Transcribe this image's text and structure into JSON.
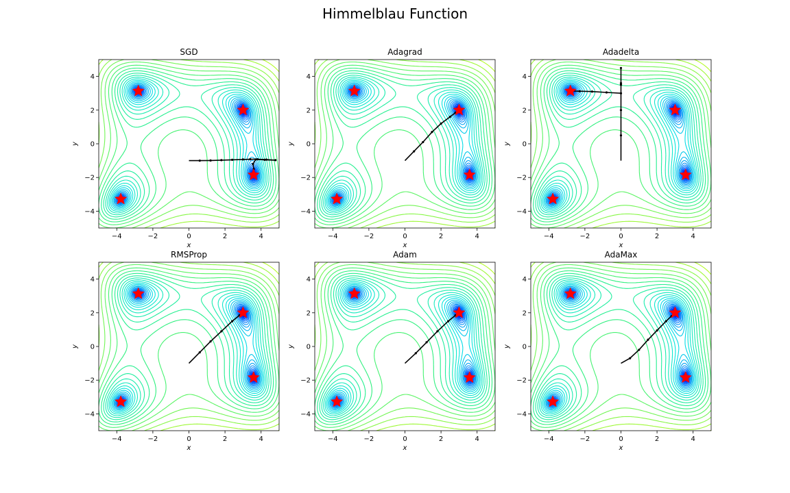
{
  "figure": {
    "title": "Himmelblau Function"
  },
  "chart_data": [
    {
      "type": "contour",
      "title": "SGD",
      "xlabel": "x",
      "ylabel": "y",
      "xlim": [
        -5,
        5
      ],
      "ylim": [
        -5,
        5
      ],
      "xticks": [
        -4,
        -2,
        0,
        2,
        4
      ],
      "yticks": [
        -4,
        -2,
        0,
        2,
        4
      ],
      "minima": [
        [
          3.0,
          2.0
        ],
        [
          -2.805,
          3.131
        ],
        [
          -3.779,
          -3.283
        ],
        [
          3.584,
          -1.848
        ]
      ],
      "path": [
        [
          0,
          -1
        ],
        [
          0.6,
          -1
        ],
        [
          1.2,
          -0.99
        ],
        [
          1.8,
          -0.97
        ],
        [
          2.4,
          -0.95
        ],
        [
          3.0,
          -0.93
        ],
        [
          3.4,
          -0.92
        ],
        [
          3.8,
          -0.92
        ],
        [
          4.3,
          -0.94
        ],
        [
          4.8,
          -0.97
        ],
        [
          4.2,
          -0.95
        ],
        [
          3.7,
          -0.93
        ],
        [
          3.55,
          -1.2
        ],
        [
          3.6,
          -1.5
        ],
        [
          3.58,
          -1.8
        ]
      ]
    },
    {
      "type": "contour",
      "title": "Adagrad",
      "xlabel": "x",
      "ylabel": "y",
      "xlim": [
        -5,
        5
      ],
      "ylim": [
        -5,
        5
      ],
      "xticks": [
        -4,
        -2,
        0,
        2,
        4
      ],
      "yticks": [
        -4,
        -2,
        0,
        2,
        4
      ],
      "minima": [
        [
          3.0,
          2.0
        ],
        [
          -2.805,
          3.131
        ],
        [
          -3.779,
          -3.283
        ],
        [
          3.584,
          -1.848
        ]
      ],
      "path": [
        [
          0,
          -1
        ],
        [
          0.5,
          -0.45
        ],
        [
          1.0,
          0.1
        ],
        [
          1.5,
          0.7
        ],
        [
          2.0,
          1.2
        ],
        [
          2.5,
          1.6
        ],
        [
          2.8,
          1.85
        ],
        [
          3.0,
          2.0
        ]
      ]
    },
    {
      "type": "contour",
      "title": "Adadelta",
      "xlabel": "x",
      "ylabel": "y",
      "xlim": [
        -5,
        5
      ],
      "ylim": [
        -5,
        5
      ],
      "xticks": [
        -4,
        -2,
        0,
        2,
        4
      ],
      "yticks": [
        -4,
        -2,
        0,
        2,
        4
      ],
      "minima": [
        [
          3.0,
          2.0
        ],
        [
          -2.805,
          3.131
        ],
        [
          -3.779,
          -3.283
        ],
        [
          3.584,
          -1.848
        ]
      ],
      "path": [
        [
          0,
          -1
        ],
        [
          0,
          0.5
        ],
        [
          0,
          2.0
        ],
        [
          0,
          3.5
        ],
        [
          0,
          4.5
        ],
        [
          0,
          3.6
        ],
        [
          0,
          3.0
        ],
        [
          -0.8,
          3.05
        ],
        [
          -1.6,
          3.1
        ],
        [
          -2.3,
          3.12
        ],
        [
          -2.8,
          3.13
        ]
      ]
    },
    {
      "type": "contour",
      "title": "RMSProp",
      "xlabel": "x",
      "ylabel": "y",
      "xlim": [
        -5,
        5
      ],
      "ylim": [
        -5,
        5
      ],
      "xticks": [
        -4,
        -2,
        0,
        2,
        4
      ],
      "yticks": [
        -4,
        -2,
        0,
        2,
        4
      ],
      "minima": [
        [
          3.0,
          2.0
        ],
        [
          -2.805,
          3.131
        ],
        [
          -3.779,
          -3.283
        ],
        [
          3.584,
          -1.848
        ]
      ],
      "path": [
        [
          0,
          -1
        ],
        [
          0.6,
          -0.35
        ],
        [
          1.2,
          0.3
        ],
        [
          1.8,
          0.9
        ],
        [
          2.4,
          1.5
        ],
        [
          2.8,
          1.85
        ],
        [
          3.0,
          2.0
        ]
      ]
    },
    {
      "type": "contour",
      "title": "Adam",
      "xlabel": "x",
      "ylabel": "y",
      "xlim": [
        -5,
        5
      ],
      "ylim": [
        -5,
        5
      ],
      "xticks": [
        -4,
        -2,
        0,
        2,
        4
      ],
      "yticks": [
        -4,
        -2,
        0,
        2,
        4
      ],
      "minima": [
        [
          3.0,
          2.0
        ],
        [
          -2.805,
          3.131
        ],
        [
          -3.779,
          -3.283
        ],
        [
          3.584,
          -1.848
        ]
      ],
      "path": [
        [
          0,
          -1
        ],
        [
          0.6,
          -0.4
        ],
        [
          1.2,
          0.25
        ],
        [
          1.8,
          0.9
        ],
        [
          2.4,
          1.5
        ],
        [
          2.8,
          1.85
        ],
        [
          3.0,
          2.0
        ]
      ]
    },
    {
      "type": "contour",
      "title": "AdaMax",
      "xlabel": "x",
      "ylabel": "y",
      "xlim": [
        -5,
        5
      ],
      "ylim": [
        -5,
        5
      ],
      "xticks": [
        -4,
        -2,
        0,
        2,
        4
      ],
      "yticks": [
        -4,
        -2,
        0,
        2,
        4
      ],
      "minima": [
        [
          3.0,
          2.0
        ],
        [
          -2.805,
          3.131
        ],
        [
          -3.779,
          -3.283
        ],
        [
          3.584,
          -1.848
        ]
      ],
      "path": [
        [
          0,
          -1
        ],
        [
          0.5,
          -0.7
        ],
        [
          1.0,
          -0.2
        ],
        [
          1.5,
          0.4
        ],
        [
          2.0,
          0.95
        ],
        [
          2.5,
          1.5
        ],
        [
          2.8,
          1.8
        ],
        [
          3.0,
          2.0
        ]
      ]
    }
  ]
}
